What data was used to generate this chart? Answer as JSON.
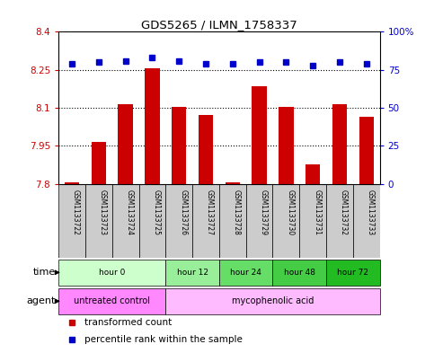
{
  "title": "GDS5265 / ILMN_1758337",
  "samples": [
    "GSM1133722",
    "GSM1133723",
    "GSM1133724",
    "GSM1133725",
    "GSM1133726",
    "GSM1133727",
    "GSM1133728",
    "GSM1133729",
    "GSM1133730",
    "GSM1133731",
    "GSM1133732",
    "GSM1133733"
  ],
  "bar_values": [
    7.805,
    7.965,
    8.115,
    8.255,
    8.105,
    8.07,
    7.805,
    8.185,
    8.105,
    7.875,
    8.115,
    8.065
  ],
  "dot_values": [
    79,
    80,
    81,
    83,
    81,
    79,
    79,
    80,
    80,
    78,
    80,
    79
  ],
  "bar_color": "#cc0000",
  "dot_color": "#0000cc",
  "ylim_left": [
    7.8,
    8.4
  ],
  "ylim_right": [
    0,
    100
  ],
  "yticks_left": [
    7.8,
    7.95,
    8.1,
    8.25,
    8.4
  ],
  "yticks_right": [
    0,
    25,
    50,
    75,
    100
  ],
  "ytick_labels_left": [
    "7.8",
    "7.95",
    "8.1",
    "8.25",
    "8.4"
  ],
  "ytick_labels_right": [
    "0",
    "25",
    "50",
    "75",
    "100%"
  ],
  "hlines": [
    7.95,
    8.1,
    8.25
  ],
  "time_groups": [
    {
      "label": "hour 0",
      "start": 0,
      "end": 4,
      "color": "#ccffcc"
    },
    {
      "label": "hour 12",
      "start": 4,
      "end": 6,
      "color": "#99ee99"
    },
    {
      "label": "hour 24",
      "start": 6,
      "end": 8,
      "color": "#66dd66"
    },
    {
      "label": "hour 48",
      "start": 8,
      "end": 10,
      "color": "#44cc44"
    },
    {
      "label": "hour 72",
      "start": 10,
      "end": 12,
      "color": "#22bb22"
    }
  ],
  "agent_groups": [
    {
      "label": "untreated control",
      "start": 0,
      "end": 4,
      "color": "#ff88ff"
    },
    {
      "label": "mycophenolic acid",
      "start": 4,
      "end": 12,
      "color": "#ffbbff"
    }
  ],
  "legend_bar_label": "transformed count",
  "legend_dot_label": "percentile rank within the sample",
  "time_label": "time",
  "agent_label": "agent",
  "bg_color": "#ffffff",
  "plot_bg_color": "#ffffff",
  "sample_box_color": "#cccccc",
  "tick_color_left": "#cc0000",
  "tick_color_right": "#0000cc",
  "bar_width": 0.55
}
